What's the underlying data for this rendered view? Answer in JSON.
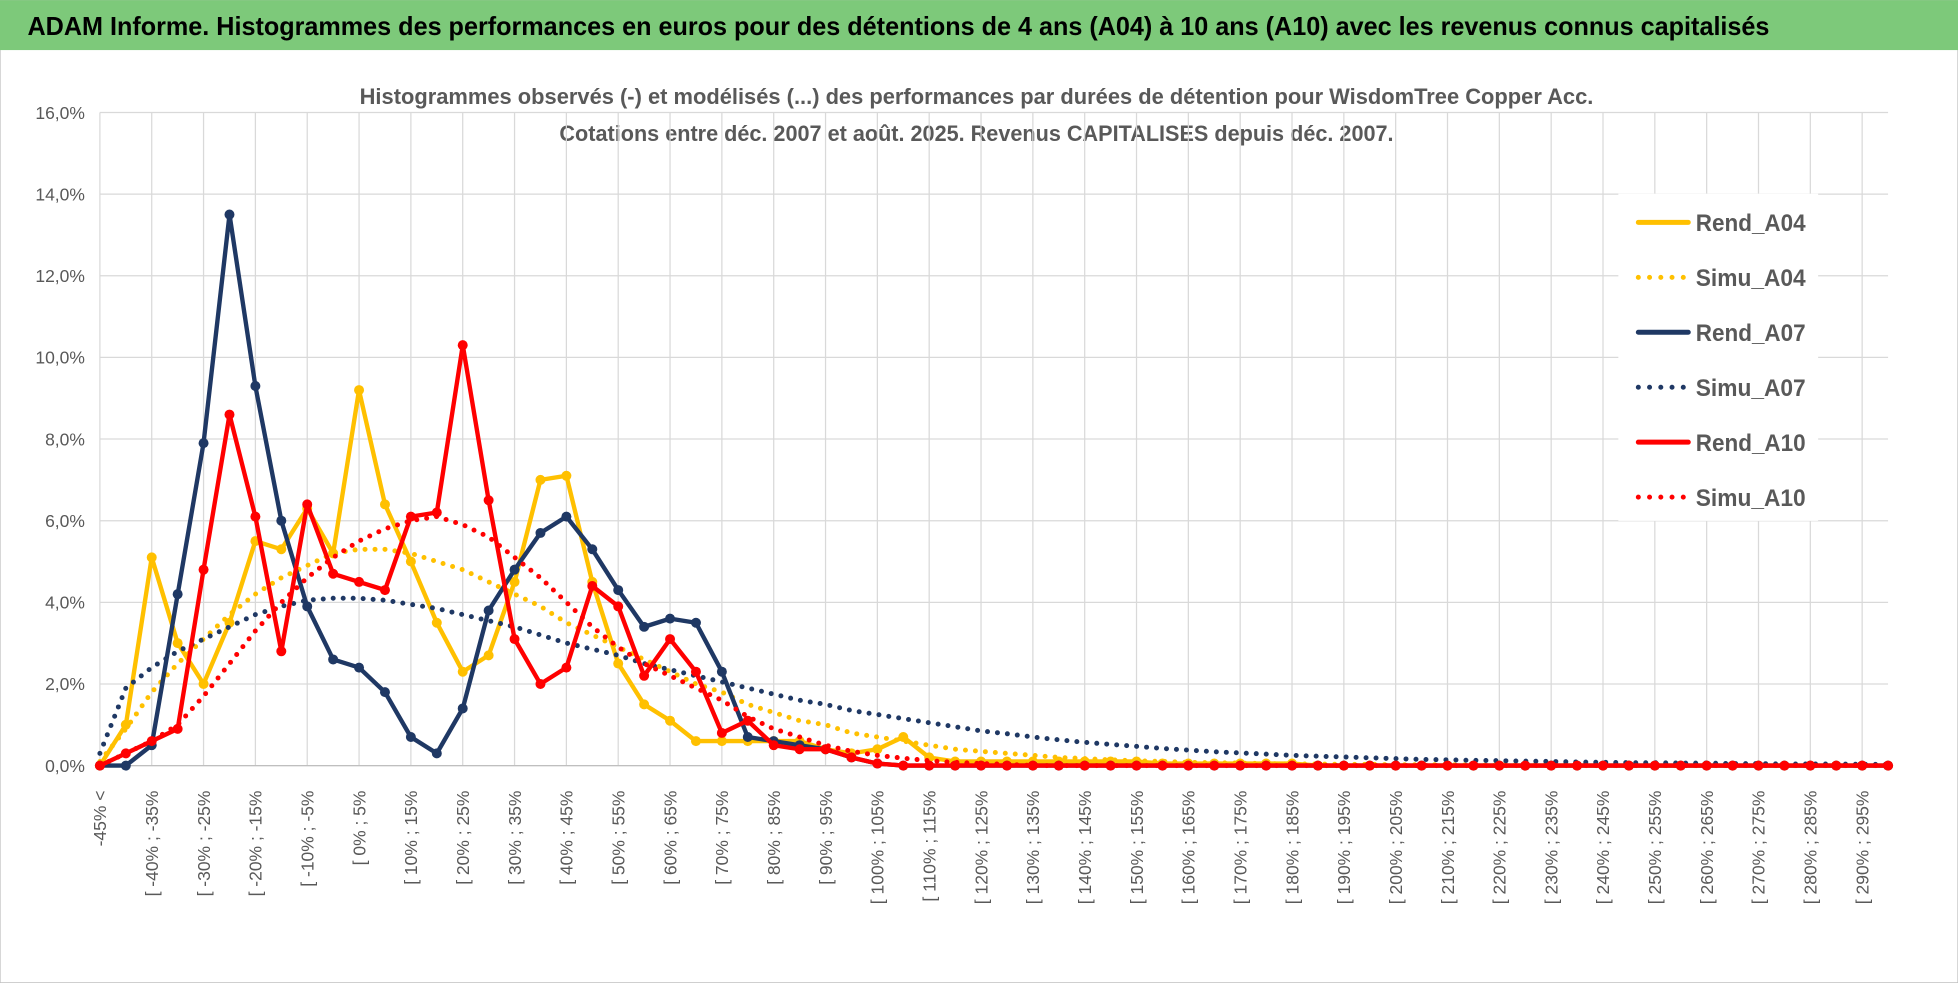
{
  "header": {
    "title": "ADAM Informe. Histogrammes des performances en euros pour des détentions de 4 ans (A04) à 10 ans (A10) avec les revenus connus capitalisés"
  },
  "chart_data": {
    "type": "line",
    "title": "Histogrammes observés (-) et modélisés (...) des performances par durées de détention pour WisdomTree Copper Acc.",
    "subtitle": "Cotations entre déc. 2007 et août. 2025. Revenus CAPITALISES depuis déc. 2007.",
    "categories": [
      "-45% <",
      null,
      "[ -40% ; -35%",
      null,
      "[ -30% ; -25%",
      null,
      "[ -20% ; -15%",
      null,
      "[ -10% ; -5%",
      null,
      "[ 0% ; 5%",
      null,
      "[ 10% ; 15%",
      null,
      "[ 20% ; 25%",
      null,
      "[ 30% ; 35%",
      null,
      "[ 40% ; 45%",
      null,
      "[ 50% ; 55%",
      null,
      "[ 60% ; 65%",
      null,
      "[ 70% ; 75%",
      null,
      "[ 80% ; 85%",
      null,
      "[ 90% ; 95%",
      null,
      "[ 100% ; 105%",
      null,
      "[ 110% ; 115%",
      null,
      "[ 120% ; 125%",
      null,
      "[ 130% ; 135%",
      null,
      "[ 140% ; 145%",
      null,
      "[ 150% ; 155%",
      null,
      "[ 160% ; 165%",
      null,
      "[ 170% ; 175%",
      null,
      "[ 180% ; 185%",
      null,
      "[ 190% ; 195%",
      null,
      "[ 200% ; 205%",
      null,
      "[ 210% ; 215%",
      null,
      "[ 220% ; 225%",
      null,
      "[ 230% ; 235%",
      null,
      "[ 240% ; 245%",
      null,
      "[ 250% ; 255%",
      null,
      "[ 260% ; 265%",
      null,
      "[ 270% ; 275%",
      null,
      "[ 280% ; 285%",
      null,
      "[ 290% ; 295%",
      null
    ],
    "series": [
      {
        "name": "Rend_A04",
        "color": "#ffc000",
        "line_style": "solid",
        "markers": true,
        "values": [
          0,
          1.0,
          5.1,
          3.0,
          2.0,
          3.5,
          5.5,
          5.3,
          6.3,
          5.2,
          9.2,
          6.4,
          5.0,
          3.5,
          2.3,
          2.7,
          4.5,
          7.0,
          7.1,
          4.5,
          2.5,
          1.5,
          1.1,
          0.6,
          0.6,
          0.6,
          0.6,
          0.6,
          0.4,
          0.3,
          0.4,
          0.7,
          0.2,
          0.1,
          0.1,
          0.1,
          0.1,
          0.1,
          0.1,
          0.1,
          0.1,
          0.05,
          0.05,
          0.05,
          0.05,
          0.05,
          0.05,
          0,
          0,
          0,
          0,
          0,
          0,
          0,
          0,
          0,
          0,
          0,
          0,
          0,
          0,
          0,
          0,
          0,
          0,
          0,
          0,
          0,
          0,
          0
        ]
      },
      {
        "name": "Simu_A04",
        "color": "#ffc000",
        "line_style": "dotted",
        "markers": false,
        "values": [
          0.1,
          0.9,
          1.8,
          2.5,
          3.1,
          3.7,
          4.2,
          4.6,
          4.9,
          5.2,
          5.3,
          5.3,
          5.2,
          5.0,
          4.8,
          4.5,
          4.2,
          3.9,
          3.5,
          3.2,
          2.9,
          2.6,
          2.3,
          2.0,
          1.8,
          1.5,
          1.3,
          1.1,
          1.0,
          0.8,
          0.7,
          0.6,
          0.5,
          0.4,
          0.35,
          0.3,
          0.25,
          0.2,
          0.17,
          0.14,
          0.12,
          0.1,
          0.08,
          0.07,
          0.06,
          0.05,
          0.04,
          0.04,
          0.03,
          0.03,
          0.02,
          0.02,
          0.02,
          0.01,
          0.01,
          0.01,
          0.01,
          0.01,
          0,
          0,
          0,
          0,
          0,
          0,
          0,
          0,
          0,
          0,
          0,
          0
        ]
      },
      {
        "name": "Rend_A07",
        "color": "#1f3864",
        "line_style": "solid",
        "markers": true,
        "values": [
          0,
          0,
          0.5,
          4.2,
          7.9,
          13.5,
          9.3,
          6.0,
          3.9,
          2.6,
          2.4,
          1.8,
          0.7,
          0.3,
          1.4,
          3.8,
          4.8,
          5.7,
          6.1,
          5.3,
          4.3,
          3.4,
          3.6,
          3.5,
          2.3,
          0.7,
          0.6,
          0.5,
          0.4,
          0.2,
          0.05,
          0,
          0,
          0,
          0,
          0,
          0,
          0,
          0,
          0,
          0,
          0,
          0,
          0,
          0,
          0,
          0,
          0,
          0,
          0,
          0,
          0,
          0,
          0,
          0,
          0,
          0,
          0,
          0,
          0,
          0,
          0,
          0,
          0,
          0,
          0,
          0,
          0,
          0,
          0
        ]
      },
      {
        "name": "Simu_A07",
        "color": "#1f3864",
        "line_style": "dotted",
        "markers": false,
        "values": [
          0.3,
          1.9,
          2.4,
          2.8,
          3.1,
          3.4,
          3.7,
          3.9,
          4.05,
          4.1,
          4.1,
          4.05,
          3.95,
          3.85,
          3.7,
          3.55,
          3.4,
          3.2,
          3.0,
          2.85,
          2.7,
          2.5,
          2.35,
          2.2,
          2.05,
          1.9,
          1.75,
          1.6,
          1.5,
          1.35,
          1.25,
          1.15,
          1.05,
          0.95,
          0.85,
          0.78,
          0.7,
          0.63,
          0.57,
          0.52,
          0.47,
          0.42,
          0.38,
          0.34,
          0.31,
          0.28,
          0.25,
          0.23,
          0.21,
          0.19,
          0.17,
          0.15,
          0.14,
          0.13,
          0.12,
          0.11,
          0.1,
          0.09,
          0.08,
          0.07,
          0.07,
          0.06,
          0.06,
          0.05,
          0.05,
          0.04,
          0.04,
          0.04,
          0.03,
          0.03
        ]
      },
      {
        "name": "Rend_A10",
        "color": "#ff0000",
        "line_style": "solid",
        "markers": true,
        "values": [
          0,
          0.3,
          0.6,
          0.9,
          4.8,
          8.6,
          6.1,
          2.8,
          6.4,
          4.7,
          4.5,
          4.3,
          6.1,
          6.2,
          10.3,
          6.5,
          3.1,
          2.0,
          2.4,
          4.4,
          3.9,
          2.2,
          3.1,
          2.3,
          0.8,
          1.1,
          0.5,
          0.4,
          0.4,
          0.2,
          0.05,
          0,
          0,
          0,
          0,
          0,
          0,
          0,
          0,
          0,
          0,
          0,
          0,
          0,
          0,
          0,
          0,
          0,
          0,
          0,
          0,
          0,
          0,
          0,
          0,
          0,
          0,
          0,
          0,
          0,
          0,
          0,
          0,
          0,
          0,
          0,
          0,
          0,
          0,
          0
        ]
      },
      {
        "name": "Simu_A10",
        "color": "#ff0000",
        "line_style": "dotted",
        "markers": false,
        "values": [
          0,
          0.3,
          0.6,
          1.0,
          1.7,
          2.5,
          3.3,
          4.0,
          4.6,
          5.1,
          5.5,
          5.8,
          6.0,
          6.1,
          5.9,
          5.6,
          5.1,
          4.6,
          4.0,
          3.4,
          2.9,
          2.5,
          2.2,
          1.9,
          1.6,
          1.2,
          0.9,
          0.7,
          0.5,
          0.35,
          0.25,
          0.18,
          0.12,
          0.08,
          0.05,
          0.03,
          0,
          0,
          0,
          0,
          0,
          0,
          0,
          0,
          0,
          0,
          0,
          0,
          0,
          0,
          0,
          0,
          0,
          0,
          0,
          0,
          0,
          0,
          0,
          0,
          0,
          0,
          0,
          0,
          0,
          0,
          0,
          0,
          0,
          0
        ]
      }
    ],
    "ylim": [
      0,
      16
    ],
    "yticks": [
      {
        "value": 0,
        "label": "0,0%"
      },
      {
        "value": 2,
        "label": "2,0%"
      },
      {
        "value": 4,
        "label": "4,0%"
      },
      {
        "value": 6,
        "label": "6,0%"
      },
      {
        "value": 8,
        "label": "8,0%"
      },
      {
        "value": 10,
        "label": "10,0%"
      },
      {
        "value": 12,
        "label": "12,0%"
      },
      {
        "value": 14,
        "label": "14,0%"
      },
      {
        "value": 16,
        "label": "16,0%"
      }
    ],
    "grid": true,
    "legend": "right"
  }
}
